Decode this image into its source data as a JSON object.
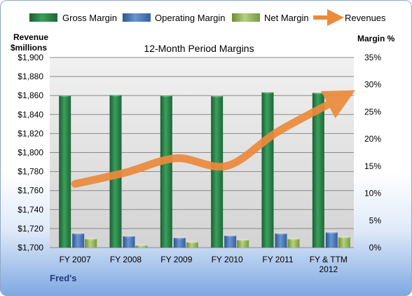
{
  "chart_data": {
    "type": "bar",
    "title": "12-Month Period Margins",
    "footer": "Fred's",
    "categories": [
      [
        "FY 2007"
      ],
      [
        "FY 2008"
      ],
      [
        "FY 2009"
      ],
      [
        "FY 2010"
      ],
      [
        "FY 2011"
      ],
      [
        "FY & TTM",
        "2012"
      ]
    ],
    "left_axis": {
      "label_lines": [
        "Revenue",
        "$millions"
      ],
      "ylim": [
        1700,
        1900
      ],
      "ticks": [
        "$1,700",
        "$1,720",
        "$1,740",
        "$1,760",
        "$1,780",
        "$1,800",
        "$1,820",
        "$1,840",
        "$1,860",
        "$1,880",
        "$1,900"
      ]
    },
    "right_axis": {
      "label": "Margin %",
      "ylim": [
        0,
        35
      ],
      "ticks": [
        "0%",
        "5%",
        "10%",
        "15%",
        "20%",
        "25%",
        "30%",
        "35%"
      ]
    },
    "series": [
      {
        "name": "Gross Margin",
        "axis": "right",
        "kind": "bar",
        "color": "#2f8a4e",
        "values": [
          28.0,
          28.1,
          28.0,
          27.9,
          28.6,
          28.5
        ]
      },
      {
        "name": "Operating Margin",
        "axis": "right",
        "kind": "bar",
        "color": "#4f7ab8",
        "values": [
          2.6,
          2.1,
          1.8,
          2.2,
          2.6,
          2.8
        ]
      },
      {
        "name": "Net Margin",
        "axis": "right",
        "kind": "bar",
        "color": "#9bbb59",
        "values": [
          1.6,
          0.4,
          1.0,
          1.4,
          1.6,
          1.9
        ]
      },
      {
        "name": "Revenues",
        "axis": "left",
        "kind": "line",
        "color": "#ec8a3c",
        "values": [
          1767,
          1779,
          1794,
          1786,
          1822,
          1856
        ]
      }
    ],
    "grid": true,
    "legend_position": "top"
  }
}
